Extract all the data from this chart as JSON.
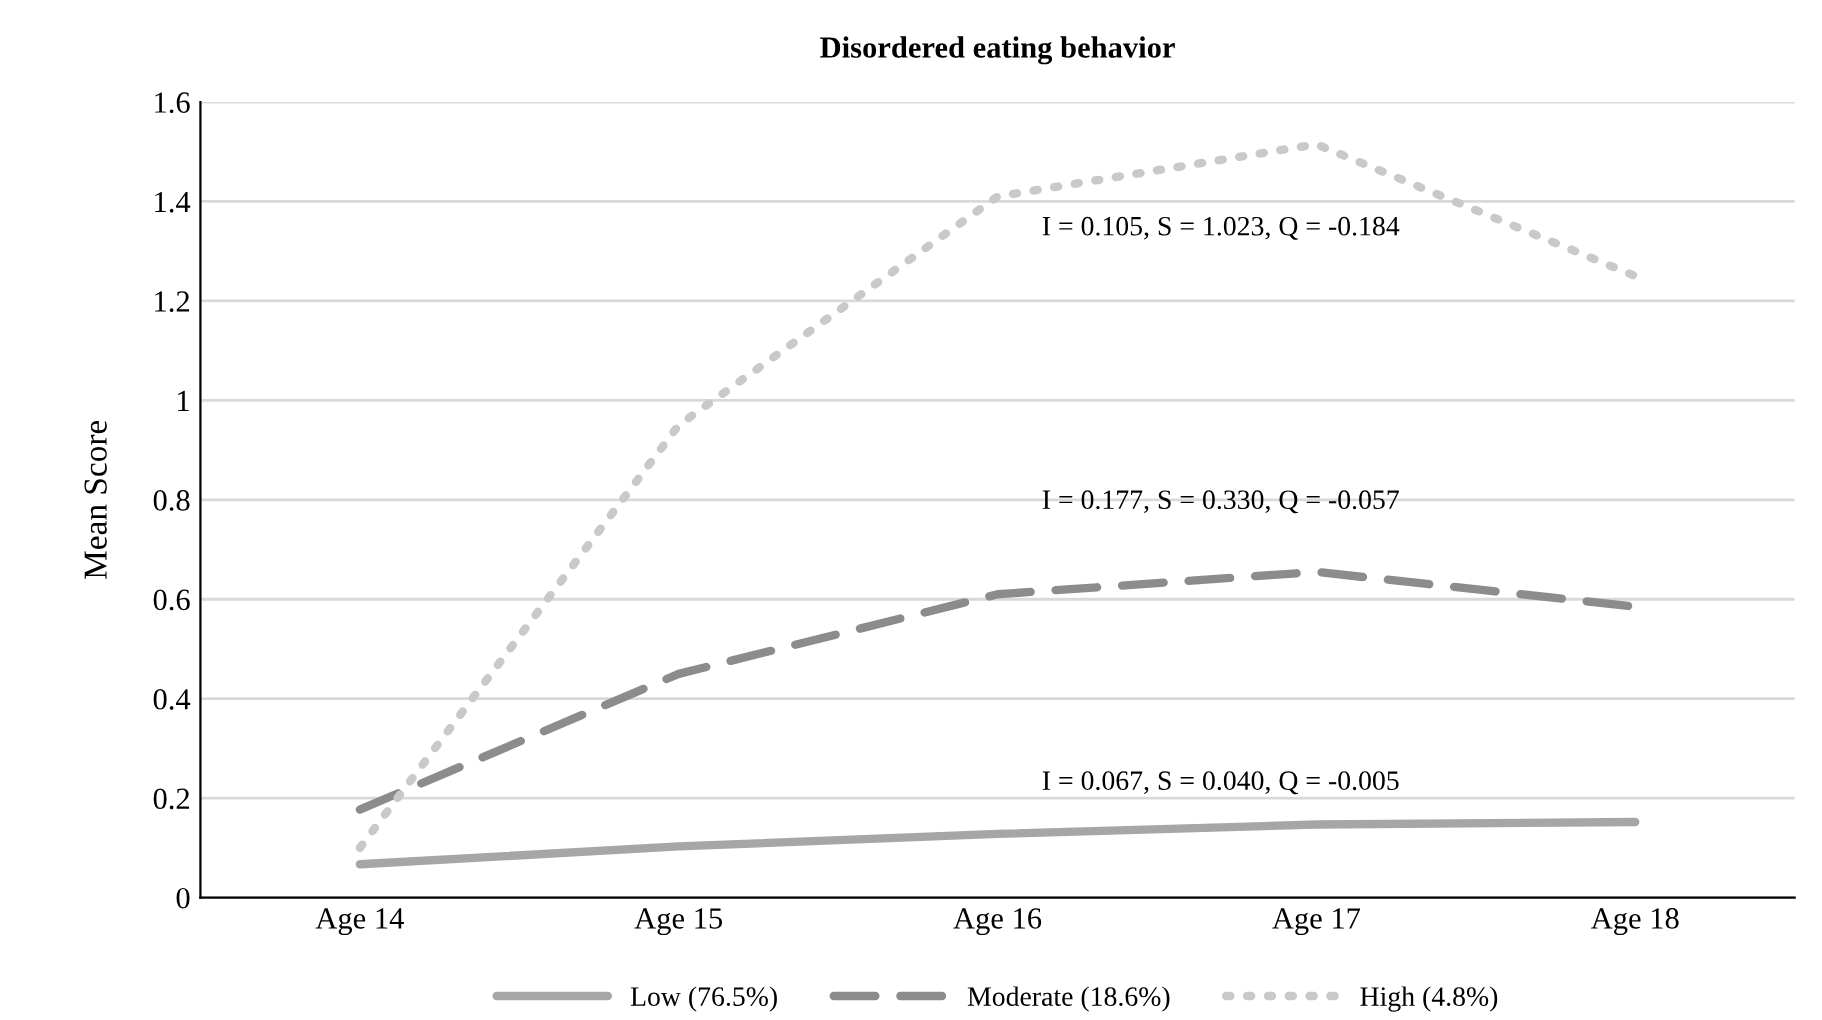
{
  "chart_data": {
    "type": "line",
    "title": "Disordered eating behavior",
    "ylabel": "Mean Score",
    "categories": [
      "Age 14",
      "Age 15",
      "Age 16",
      "Age 17",
      "Age 18"
    ],
    "series": [
      {
        "name": "Low (76.5%)",
        "color": "#a6a6a6",
        "line_style": "solid",
        "values": [
          0.067,
          0.103,
          0.128,
          0.147,
          0.152
        ]
      },
      {
        "name": "Moderate (18.6%)",
        "color": "#8c8c8c",
        "line_style": "dashed",
        "values": [
          0.177,
          0.45,
          0.61,
          0.655,
          0.585
        ]
      },
      {
        "name": "High (4.8%)",
        "color": "#c9c9c9",
        "line_style": "dotted",
        "values": [
          0.1,
          0.95,
          1.41,
          1.515,
          1.25
        ]
      }
    ],
    "annotations": [
      "I = 0.067, S = 0.040, Q = -0.005",
      "I = 0.177, S = 0.330, Q = -0.057",
      "I = 0.105, S = 1.023, Q = -0.184"
    ],
    "ylim": [
      0,
      1.6
    ],
    "yticks": [
      0,
      0.2,
      0.4,
      0.6,
      0.8,
      1,
      1.2,
      1.4,
      1.6
    ],
    "grid": "y",
    "legend": "bottom",
    "marker": "none"
  }
}
